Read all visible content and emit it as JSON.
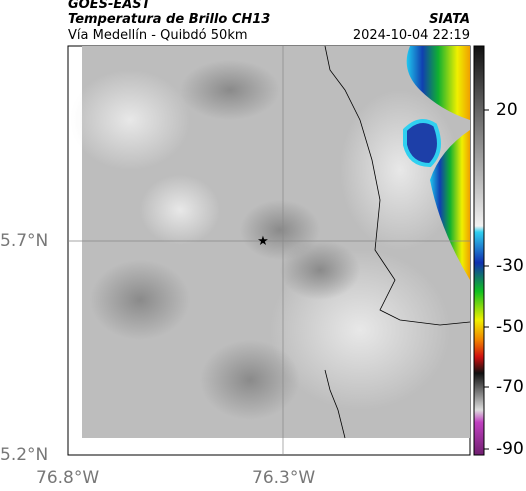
{
  "header": {
    "satellite": "GOES-EAST",
    "title": "Temperatura de Brillo CH13",
    "subtitle": "Vía Medellín - Quibdó 50km",
    "source": "SIATA",
    "datetime": "2024-10-04 22:19"
  },
  "axes": {
    "lat_labels": [
      "5.7°N",
      "5.2°N"
    ],
    "lon_labels": [
      "76.8°W",
      "76.3°W"
    ]
  },
  "colorbar": {
    "ticks": [
      20,
      -30,
      -50,
      -70,
      -90
    ]
  }
}
